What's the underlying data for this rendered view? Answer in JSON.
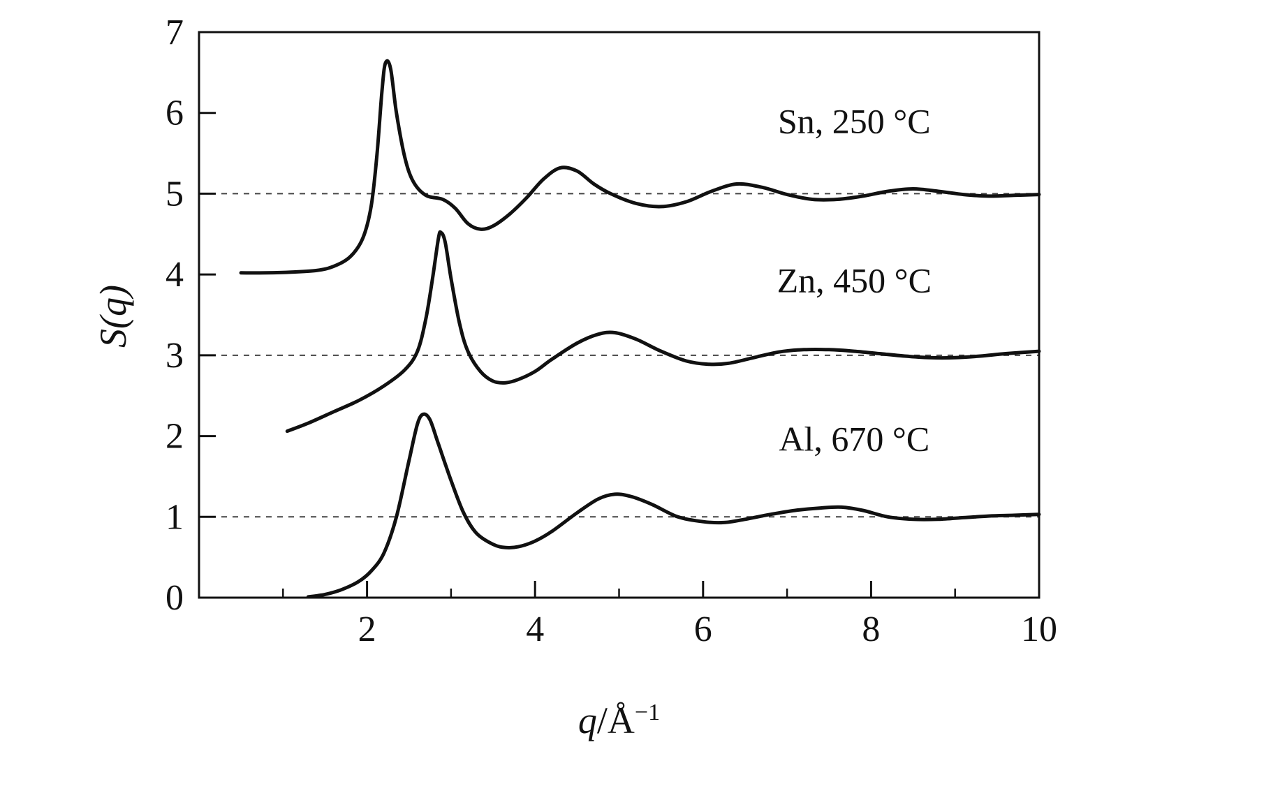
{
  "chart_data": {
    "type": "line",
    "title": "",
    "xlabel_symbol": "q",
    "xlabel_unit": "/Å",
    "xlabel_superscript": "−1",
    "ylabel": "S(q)",
    "xlim": [
      0,
      10
    ],
    "ylim": [
      0,
      7
    ],
    "xticks_major": [
      2,
      4,
      6,
      8,
      10
    ],
    "xticks_minor": [
      1,
      3,
      5,
      7,
      9
    ],
    "yticks": [
      0,
      1,
      2,
      3,
      4,
      5,
      6,
      7
    ],
    "grid": false,
    "legend_position": "none",
    "line_color": "#111111",
    "baseline_color": "#444444",
    "baselines": [
      {
        "series": "Sn",
        "y": 5
      },
      {
        "series": "Zn",
        "y": 3
      },
      {
        "series": "Al",
        "y": 1
      }
    ],
    "annotations": [
      {
        "text": "Sn, 250 °C",
        "x": 7.8,
        "y": 5.75
      },
      {
        "text": "Zn, 450 °C",
        "x": 7.8,
        "y": 3.78
      },
      {
        "text": "Al, 670 °C",
        "x": 7.8,
        "y": 1.82
      }
    ],
    "series": [
      {
        "name": "Sn, 250 °C",
        "element": "Sn",
        "baseline": 5,
        "points": [
          [
            0.5,
            4.02
          ],
          [
            0.8,
            4.02
          ],
          [
            1.1,
            4.03
          ],
          [
            1.4,
            4.05
          ],
          [
            1.6,
            4.1
          ],
          [
            1.8,
            4.22
          ],
          [
            1.95,
            4.45
          ],
          [
            2.05,
            4.85
          ],
          [
            2.12,
            5.5
          ],
          [
            2.18,
            6.3
          ],
          [
            2.22,
            6.62
          ],
          [
            2.28,
            6.55
          ],
          [
            2.35,
            6.0
          ],
          [
            2.45,
            5.45
          ],
          [
            2.55,
            5.15
          ],
          [
            2.7,
            4.98
          ],
          [
            2.9,
            4.93
          ],
          [
            3.05,
            4.82
          ],
          [
            3.2,
            4.63
          ],
          [
            3.35,
            4.56
          ],
          [
            3.5,
            4.6
          ],
          [
            3.7,
            4.75
          ],
          [
            3.9,
            4.95
          ],
          [
            4.1,
            5.18
          ],
          [
            4.3,
            5.32
          ],
          [
            4.5,
            5.28
          ],
          [
            4.7,
            5.12
          ],
          [
            4.9,
            5.0
          ],
          [
            5.2,
            4.88
          ],
          [
            5.5,
            4.84
          ],
          [
            5.8,
            4.9
          ],
          [
            6.1,
            5.03
          ],
          [
            6.4,
            5.12
          ],
          [
            6.7,
            5.08
          ],
          [
            7.0,
            4.99
          ],
          [
            7.3,
            4.93
          ],
          [
            7.6,
            4.93
          ],
          [
            7.9,
            4.97
          ],
          [
            8.2,
            5.03
          ],
          [
            8.5,
            5.06
          ],
          [
            8.8,
            5.03
          ],
          [
            9.1,
            4.99
          ],
          [
            9.4,
            4.97
          ],
          [
            9.7,
            4.98
          ],
          [
            10.0,
            4.99
          ]
        ]
      },
      {
        "name": "Zn, 450 °C",
        "element": "Zn",
        "baseline": 3,
        "points": [
          [
            1.05,
            2.06
          ],
          [
            1.3,
            2.16
          ],
          [
            1.6,
            2.3
          ],
          [
            1.9,
            2.44
          ],
          [
            2.2,
            2.62
          ],
          [
            2.45,
            2.82
          ],
          [
            2.6,
            3.05
          ],
          [
            2.7,
            3.45
          ],
          [
            2.78,
            3.95
          ],
          [
            2.85,
            4.45
          ],
          [
            2.88,
            4.52
          ],
          [
            2.93,
            4.4
          ],
          [
            3.0,
            3.95
          ],
          [
            3.1,
            3.4
          ],
          [
            3.2,
            3.05
          ],
          [
            3.35,
            2.8
          ],
          [
            3.5,
            2.68
          ],
          [
            3.65,
            2.66
          ],
          [
            3.8,
            2.7
          ],
          [
            4.0,
            2.8
          ],
          [
            4.2,
            2.95
          ],
          [
            4.5,
            3.15
          ],
          [
            4.75,
            3.26
          ],
          [
            4.95,
            3.28
          ],
          [
            5.2,
            3.2
          ],
          [
            5.5,
            3.05
          ],
          [
            5.8,
            2.93
          ],
          [
            6.05,
            2.89
          ],
          [
            6.3,
            2.9
          ],
          [
            6.6,
            2.97
          ],
          [
            6.9,
            3.04
          ],
          [
            7.2,
            3.07
          ],
          [
            7.5,
            3.07
          ],
          [
            7.8,
            3.05
          ],
          [
            8.1,
            3.02
          ],
          [
            8.4,
            2.99
          ],
          [
            8.7,
            2.97
          ],
          [
            9.0,
            2.97
          ],
          [
            9.3,
            2.99
          ],
          [
            9.6,
            3.02
          ],
          [
            10.0,
            3.05
          ]
        ]
      },
      {
        "name": "Al, 670 °C",
        "element": "Al",
        "baseline": 1,
        "points": [
          [
            1.3,
            0.01
          ],
          [
            1.5,
            0.04
          ],
          [
            1.7,
            0.1
          ],
          [
            1.9,
            0.2
          ],
          [
            2.05,
            0.33
          ],
          [
            2.2,
            0.55
          ],
          [
            2.35,
            1.0
          ],
          [
            2.5,
            1.7
          ],
          [
            2.6,
            2.15
          ],
          [
            2.67,
            2.27
          ],
          [
            2.75,
            2.2
          ],
          [
            2.85,
            1.9
          ],
          [
            3.0,
            1.45
          ],
          [
            3.15,
            1.05
          ],
          [
            3.3,
            0.8
          ],
          [
            3.5,
            0.66
          ],
          [
            3.65,
            0.62
          ],
          [
            3.8,
            0.63
          ],
          [
            4.0,
            0.7
          ],
          [
            4.2,
            0.82
          ],
          [
            4.5,
            1.05
          ],
          [
            4.75,
            1.22
          ],
          [
            4.95,
            1.28
          ],
          [
            5.15,
            1.25
          ],
          [
            5.4,
            1.15
          ],
          [
            5.7,
            1.0
          ],
          [
            6.0,
            0.94
          ],
          [
            6.25,
            0.93
          ],
          [
            6.5,
            0.97
          ],
          [
            6.8,
            1.03
          ],
          [
            7.1,
            1.08
          ],
          [
            7.4,
            1.11
          ],
          [
            7.65,
            1.12
          ],
          [
            7.9,
            1.08
          ],
          [
            8.2,
            1.0
          ],
          [
            8.5,
            0.97
          ],
          [
            8.8,
            0.97
          ],
          [
            9.1,
            0.99
          ],
          [
            9.4,
            1.01
          ],
          [
            9.7,
            1.02
          ],
          [
            10.0,
            1.03
          ]
        ]
      }
    ]
  }
}
